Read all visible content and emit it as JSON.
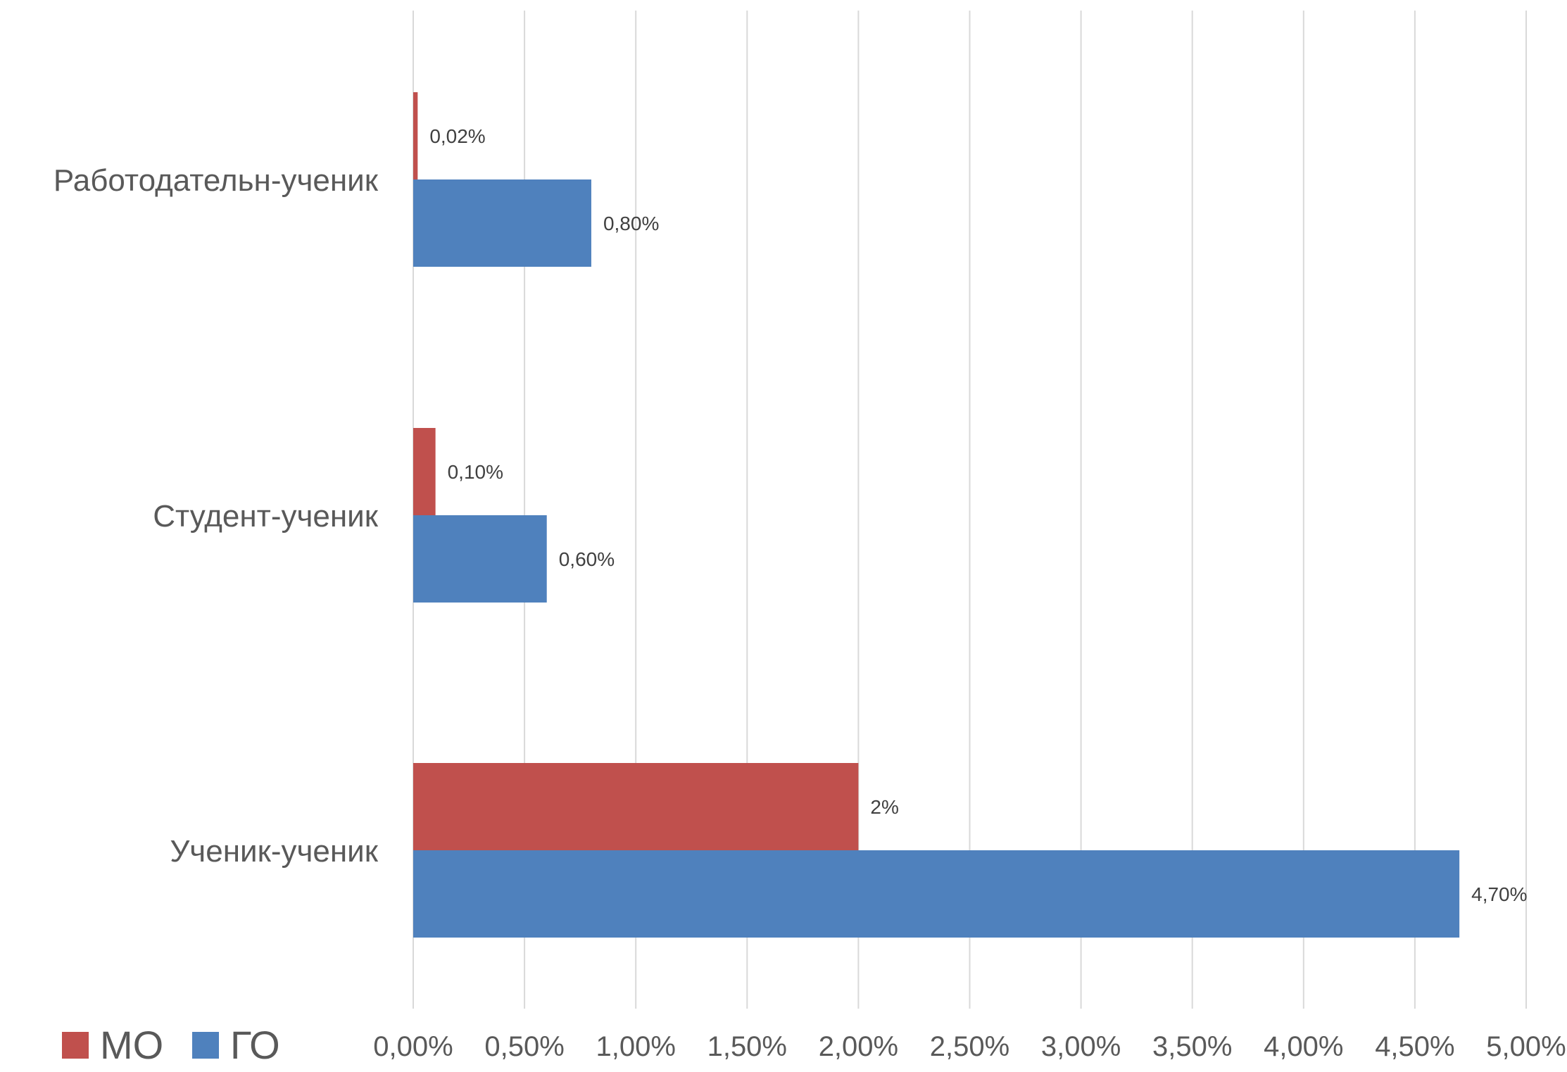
{
  "chart_data": {
    "type": "bar",
    "orientation": "horizontal",
    "categories": [
      "Работодательн-ученик",
      "Студент-ученик",
      "Ученик-ученик"
    ],
    "series": [
      {
        "name": "МО",
        "color": "#c0504d",
        "values": [
          0.02,
          0.1,
          2.0
        ],
        "labels": [
          "0,02%",
          "0,10%",
          "2%"
        ]
      },
      {
        "name": "ГО",
        "color": "#4f81bd",
        "values": [
          0.8,
          0.6,
          4.7
        ],
        "labels": [
          "0,80%",
          "0,60%",
          "4,70%"
        ]
      }
    ],
    "xlim": [
      0,
      5
    ],
    "x_ticks": [
      0,
      0.5,
      1,
      1.5,
      2,
      2.5,
      3,
      3.5,
      4,
      4.5,
      5
    ],
    "x_tick_labels": [
      "0,00%",
      "0,50%",
      "1,00%",
      "1,50%",
      "2,00%",
      "2,50%",
      "3,00%",
      "3,50%",
      "4,00%",
      "4,50%",
      "5,00%"
    ],
    "grid": true,
    "legend_position": "bottom-left",
    "title": "",
    "xlabel": "",
    "ylabel": ""
  }
}
